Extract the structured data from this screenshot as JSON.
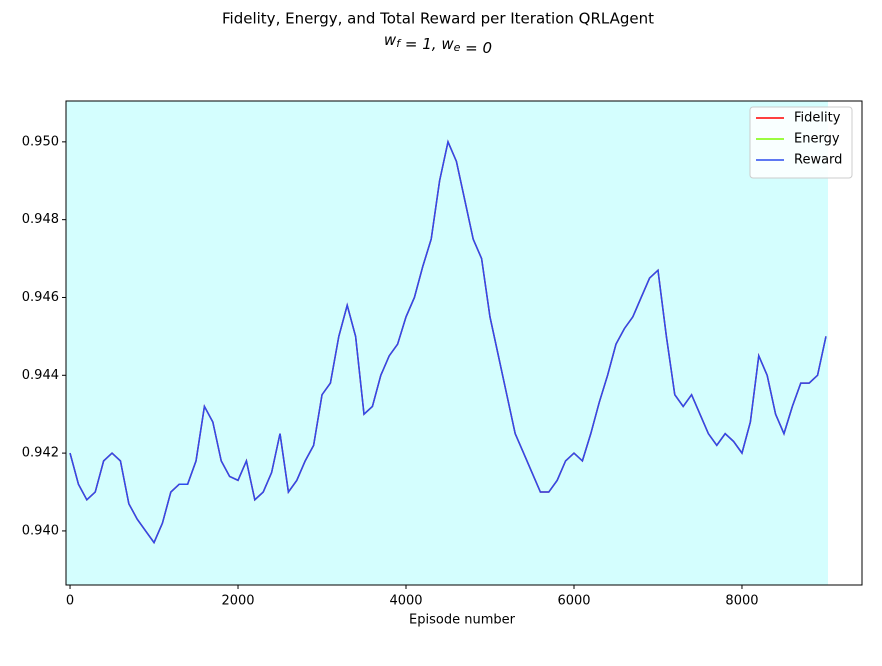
{
  "chart_data": {
    "type": "line",
    "title": "Fidelity, Energy, and Total Reward per Iteration QRLAgent",
    "subtitle": "w_f = 1, w_e = 0",
    "xlabel": "Episode number",
    "x": [
      0,
      100,
      200,
      300,
      400,
      500,
      600,
      700,
      800,
      900,
      1000,
      1100,
      1200,
      1300,
      1400,
      1500,
      1600,
      1700,
      1800,
      1900,
      2000,
      2100,
      2200,
      2300,
      2400,
      2500,
      2600,
      2700,
      2800,
      2900,
      3000,
      3100,
      3200,
      3300,
      3400,
      3500,
      3600,
      3700,
      3800,
      3900,
      4000,
      4100,
      4200,
      4300,
      4400,
      4500,
      4600,
      4700,
      4800,
      4900,
      5000,
      5100,
      5200,
      5300,
      5400,
      5500,
      5600,
      5700,
      5800,
      5900,
      6000,
      6100,
      6200,
      6300,
      6400,
      6500,
      6600,
      6700,
      6800,
      6900,
      7000,
      7100,
      7200,
      7300,
      7400,
      7500,
      7600,
      7700,
      7800,
      7900,
      8000,
      8100,
      8200,
      8300,
      8400,
      8500,
      8600,
      8700,
      8800,
      8900,
      9000
    ],
    "series": [
      {
        "name": "Fidelity",
        "color": "#ff0000",
        "values": [
          0.942,
          0.9412,
          0.9408,
          0.941,
          0.9418,
          0.942,
          0.9418,
          0.9407,
          0.9403,
          0.94,
          0.9397,
          0.9402,
          0.941,
          0.9412,
          0.9412,
          0.9418,
          0.9432,
          0.9428,
          0.9418,
          0.9414,
          0.9413,
          0.9418,
          0.9408,
          0.941,
          0.9415,
          0.9425,
          0.941,
          0.9413,
          0.9418,
          0.9422,
          0.9435,
          0.9438,
          0.945,
          0.9458,
          0.945,
          0.943,
          0.9432,
          0.944,
          0.9445,
          0.9448,
          0.9455,
          0.946,
          0.9468,
          0.9475,
          0.949,
          0.95,
          0.9495,
          0.9485,
          0.9475,
          0.947,
          0.9455,
          0.9445,
          0.9435,
          0.9425,
          0.942,
          0.9415,
          0.941,
          0.941,
          0.9413,
          0.9418,
          0.942,
          0.9418,
          0.9425,
          0.9433,
          0.944,
          0.9448,
          0.9452,
          0.9455,
          0.946,
          0.9465,
          0.9467,
          0.945,
          0.9435,
          0.9432,
          0.9435,
          0.943,
          0.9425,
          0.9422,
          0.9425,
          0.9423,
          0.942,
          0.9428,
          0.9445,
          0.944,
          0.943,
          0.9425,
          0.9432,
          0.9438,
          0.9438,
          0.944,
          0.945
        ]
      },
      {
        "name": "Energy",
        "color": "#7cfc00",
        "values": [
          null,
          null,
          null,
          null,
          null,
          null,
          null,
          null,
          null,
          null,
          null,
          null,
          null,
          null,
          null,
          null,
          null,
          null,
          null,
          null,
          null,
          null,
          null,
          null,
          null,
          null,
          null,
          null,
          null,
          null,
          null,
          null,
          null,
          null,
          null,
          null,
          null,
          null,
          null,
          null,
          null,
          null,
          null,
          null,
          null,
          null,
          null,
          null,
          null,
          null,
          null,
          null,
          null,
          null,
          null,
          null,
          null,
          null,
          null,
          null,
          null,
          null,
          null,
          null,
          null,
          null,
          null,
          null,
          null,
          null,
          null,
          null,
          null,
          null,
          null,
          null,
          null,
          null,
          null,
          null,
          null,
          null,
          null,
          null,
          null,
          null,
          null,
          null,
          null,
          null,
          null
        ]
      },
      {
        "name": "Reward",
        "color": "#2b4ced",
        "values": [
          0.942,
          0.9412,
          0.9408,
          0.941,
          0.9418,
          0.942,
          0.9418,
          0.9407,
          0.9403,
          0.94,
          0.9397,
          0.9402,
          0.941,
          0.9412,
          0.9412,
          0.9418,
          0.9432,
          0.9428,
          0.9418,
          0.9414,
          0.9413,
          0.9418,
          0.9408,
          0.941,
          0.9415,
          0.9425,
          0.941,
          0.9413,
          0.9418,
          0.9422,
          0.9435,
          0.9438,
          0.945,
          0.9458,
          0.945,
          0.943,
          0.9432,
          0.944,
          0.9445,
          0.9448,
          0.9455,
          0.946,
          0.9468,
          0.9475,
          0.949,
          0.95,
          0.9495,
          0.9485,
          0.9475,
          0.947,
          0.9455,
          0.9445,
          0.9435,
          0.9425,
          0.942,
          0.9415,
          0.941,
          0.941,
          0.9413,
          0.9418,
          0.942,
          0.9418,
          0.9425,
          0.9433,
          0.944,
          0.9448,
          0.9452,
          0.9455,
          0.946,
          0.9465,
          0.9467,
          0.945,
          0.9435,
          0.9432,
          0.9435,
          0.943,
          0.9425,
          0.9422,
          0.9425,
          0.9423,
          0.942,
          0.9428,
          0.9445,
          0.944,
          0.943,
          0.9425,
          0.9432,
          0.9438,
          0.9438,
          0.944,
          0.945
        ]
      }
    ],
    "xlim": [
      -48,
      9429
    ],
    "ylim": [
      0.93861,
      0.95105
    ],
    "xticks": [
      0,
      2000,
      4000,
      6000,
      8000
    ],
    "yticks": [
      {
        "value": 0.94,
        "label": "0.940"
      },
      {
        "value": 0.942,
        "label": "0.942"
      },
      {
        "value": 0.944,
        "label": "0.944"
      },
      {
        "value": 0.946,
        "label": "0.946"
      },
      {
        "value": 0.948,
        "label": "0.948"
      },
      {
        "value": 0.95,
        "label": "0.950"
      }
    ],
    "shade": {
      "xlim": [
        -48,
        9024
      ],
      "color": "#d4fefe"
    },
    "legend": "upper right"
  }
}
